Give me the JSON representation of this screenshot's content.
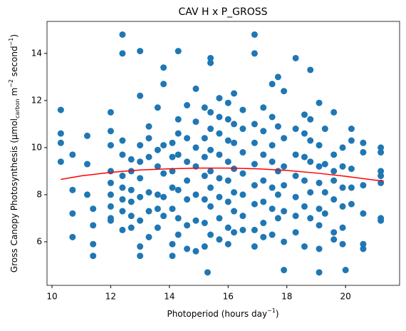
{
  "chart_data": {
    "type": "scatter",
    "title": "CAV H x P_GROSS",
    "xlabel": [
      "Photoperiod (hours day",
      "−1",
      ")"
    ],
    "ylabel": [
      "Gross Canopy Photosynthesis (μmol",
      "carbon",
      " m",
      "−2",
      " second",
      "−1",
      ")"
    ],
    "xlim": [
      9.83,
      21.84
    ],
    "ylim": [
      4.15,
      15.36
    ],
    "xticks": [
      10,
      12,
      14,
      16,
      18,
      20
    ],
    "yticks": [
      6,
      8,
      10,
      12,
      14
    ],
    "series": [
      {
        "type": "scatter",
        "color": "#1f77b4",
        "x": [
          10.3,
          10.3,
          10.3,
          10.3,
          10.7,
          10.7,
          10.7,
          10.7,
          11.2,
          11.2,
          11.2,
          11.4,
          11.4,
          11.4,
          11.4,
          12.0,
          12.0,
          12.0,
          12.0,
          12.0,
          12.0,
          12.0,
          12.0,
          12.0,
          12.4,
          12.4,
          12.4,
          12.4,
          12.4,
          12.4,
          12.4,
          12.4,
          12.4,
          12.7,
          12.7,
          12.7,
          12.7,
          12.7,
          12.7,
          13.0,
          13.0,
          13.0,
          13.0,
          13.0,
          13.0,
          13.0,
          13.0,
          13.0,
          13.3,
          13.3,
          13.3,
          13.3,
          13.3,
          13.3,
          13.6,
          13.6,
          13.6,
          13.6,
          13.6,
          13.6,
          13.8,
          13.8,
          13.8,
          13.8,
          13.8,
          13.8,
          14.1,
          14.1,
          14.1,
          14.1,
          14.1,
          14.1,
          14.1,
          14.3,
          14.3,
          14.3,
          14.3,
          14.3,
          14.3,
          14.3,
          14.6,
          14.6,
          14.6,
          14.6,
          14.6,
          14.6,
          14.6,
          14.9,
          14.9,
          14.9,
          14.9,
          14.9,
          14.9,
          14.9,
          15.2,
          15.2,
          15.2,
          15.2,
          15.2,
          15.2,
          15.2,
          15.3,
          15.4,
          15.4,
          15.4,
          15.4,
          15.4,
          15.4,
          15.4,
          15.4,
          15.4,
          15.7,
          15.7,
          15.7,
          15.7,
          15.7,
          15.7,
          15.7,
          15.7,
          16.0,
          16.0,
          16.0,
          16.0,
          16.0,
          16.0,
          16.0,
          16.0,
          16.2,
          16.2,
          16.2,
          16.2,
          16.2,
          16.2,
          16.2,
          16.5,
          16.5,
          16.5,
          16.5,
          16.5,
          16.5,
          16.5,
          16.9,
          16.9,
          16.9,
          16.9,
          16.9,
          16.9,
          16.9,
          16.9,
          16.9,
          17.2,
          17.2,
          17.2,
          17.2,
          17.2,
          17.2,
          17.2,
          17.5,
          17.5,
          17.5,
          17.5,
          17.5,
          17.5,
          17.5,
          17.7,
          17.7,
          17.7,
          17.7,
          17.7,
          17.9,
          17.9,
          17.9,
          17.9,
          17.9,
          17.9,
          17.9,
          18.3,
          18.3,
          18.3,
          18.3,
          18.3,
          18.3,
          18.3,
          18.6,
          18.6,
          18.6,
          18.6,
          18.6,
          18.6,
          18.8,
          18.8,
          18.8,
          18.8,
          18.8,
          18.8,
          19.1,
          19.1,
          19.1,
          19.1,
          19.1,
          19.1,
          19.1,
          19.1,
          19.3,
          19.3,
          19.3,
          19.3,
          19.6,
          19.6,
          19.6,
          19.6,
          19.6,
          19.6,
          19.6,
          19.9,
          19.9,
          19.9,
          19.9,
          19.9,
          19.9,
          20.0,
          20.2,
          20.2,
          20.2,
          20.2,
          20.2,
          20.6,
          20.6,
          20.6,
          20.6,
          20.6,
          20.6,
          21.2,
          21.2,
          21.2,
          21.2,
          21.2,
          21.2,
          21.2
        ],
        "values": [
          11.6,
          10.6,
          10.2,
          9.4,
          9.7,
          8.2,
          7.2,
          6.2,
          10.5,
          9.3,
          8.0,
          7.4,
          6.7,
          5.9,
          5.4,
          11.5,
          10.7,
          10.1,
          9.0,
          8.5,
          8.0,
          7.5,
          7.0,
          6.9,
          14.8,
          14.0,
          10.3,
          9.7,
          8.8,
          8.3,
          7.8,
          7.3,
          6.5,
          9.5,
          9.0,
          8.2,
          7.7,
          7.1,
          6.6,
          14.1,
          12.2,
          10.1,
          9.4,
          8.7,
          7.9,
          6.9,
          5.8,
          5.4,
          10.9,
          10.4,
          9.6,
          8.1,
          7.3,
          6.2,
          11.7,
          9.9,
          9.2,
          8.0,
          7.4,
          6.6,
          13.4,
          12.7,
          10.1,
          8.9,
          7.9,
          7.1,
          10.2,
          9.6,
          9.0,
          8.3,
          7.4,
          5.9,
          5.4,
          14.1,
          11.2,
          10.6,
          9.7,
          8.2,
          7.0,
          6.3,
          11.8,
          10.4,
          9.4,
          8.6,
          7.8,
          6.7,
          5.7,
          12.5,
          11.1,
          10.0,
          9.2,
          8.0,
          6.9,
          5.6,
          11.7,
          10.4,
          9.6,
          8.8,
          7.8,
          6.8,
          5.8,
          4.7,
          13.8,
          13.6,
          11.5,
          10.8,
          9.9,
          9.0,
          8.3,
          7.5,
          6.3,
          12.1,
          11.3,
          10.6,
          9.7,
          8.7,
          7.9,
          7.0,
          6.1,
          11.9,
          11.2,
          10.3,
          9.4,
          8.6,
          7.7,
          6.6,
          5.9,
          12.3,
          11.0,
          10.2,
          9.1,
          8.1,
          7.3,
          6.4,
          11.6,
          10.8,
          9.8,
          8.9,
          8.0,
          7.1,
          6.5,
          14.8,
          14.0,
          11.0,
          10.2,
          9.3,
          8.4,
          7.6,
          6.5,
          5.8,
          11.7,
          10.7,
          9.7,
          8.6,
          7.7,
          6.8,
          6.2,
          12.7,
          11.3,
          10.1,
          9.4,
          8.3,
          7.4,
          6.3,
          13.0,
          10.9,
          9.0,
          8.0,
          7.0,
          12.4,
          10.4,
          9.2,
          8.4,
          7.3,
          6.0,
          4.8,
          13.8,
          10.8,
          9.7,
          8.8,
          7.9,
          7.1,
          6.4,
          11.4,
          10.6,
          9.6,
          8.6,
          7.5,
          5.8,
          13.3,
          11.2,
          10.3,
          9.4,
          8.1,
          7.0,
          11.9,
          10.1,
          9.2,
          8.5,
          7.4,
          6.7,
          5.7,
          4.7,
          10.8,
          9.3,
          8.1,
          7.2,
          11.5,
          9.7,
          9.0,
          8.6,
          7.8,
          6.4,
          6.1,
          10.0,
          9.2,
          8.3,
          7.5,
          6.6,
          5.9,
          4.8,
          10.8,
          10.3,
          9.1,
          8.3,
          7.6,
          10.2,
          9.8,
          8.4,
          7.2,
          5.9,
          5.7,
          10.0,
          9.8,
          9.0,
          8.8,
          8.5,
          7.0,
          6.9
        ]
      },
      {
        "type": "line",
        "color": "#ff0000",
        "x": [
          10.3,
          11,
          12,
          13,
          14,
          15,
          16,
          17,
          18,
          19,
          20,
          21,
          21.3
        ],
        "values": [
          8.65,
          8.8,
          8.95,
          9.05,
          9.1,
          9.13,
          9.13,
          9.1,
          9.03,
          8.92,
          8.78,
          8.62,
          8.58
        ]
      }
    ]
  }
}
